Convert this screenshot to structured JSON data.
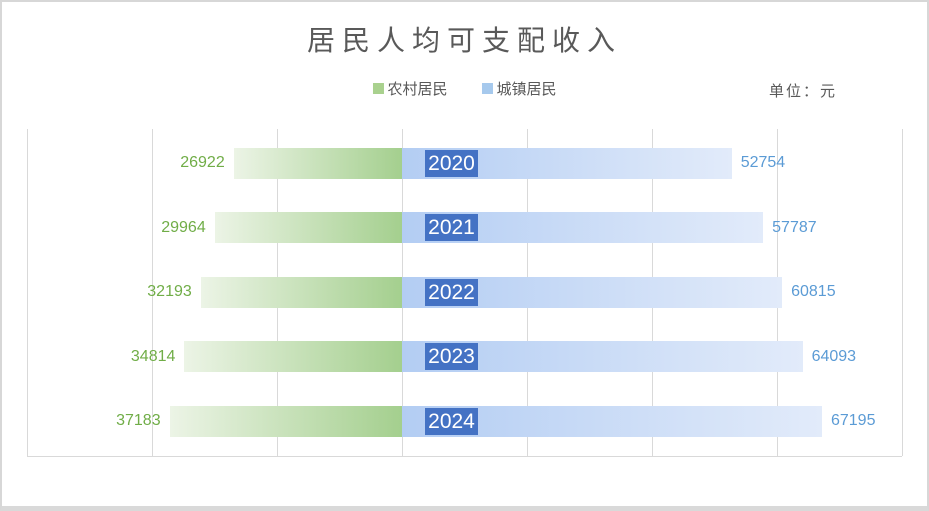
{
  "chart_data": {
    "type": "bar",
    "variant": "diverging-horizontal",
    "title": "居民人均可支配收入",
    "unit_label": "单位：元",
    "categories": [
      "2020",
      "2021",
      "2022",
      "2023",
      "2024"
    ],
    "series": [
      {
        "name": "农村居民",
        "side": "left",
        "values": [
          26922,
          29964,
          32193,
          34814,
          37183
        ],
        "label_color": "#70ad47",
        "legend_color": "#a9d18e",
        "bar_gradient": [
          "#ecf4e6",
          "#a4cf8e"
        ]
      },
      {
        "name": "城镇居民",
        "side": "right",
        "values": [
          52754,
          57787,
          60815,
          64093,
          67195
        ],
        "label_color": "#5b9bd5",
        "legend_color": "#a6c9ed",
        "bar_gradient": [
          "#b3cdf3",
          "#e2ebfa"
        ]
      }
    ],
    "axis": {
      "tick_interval": 20000,
      "left_max": 60000,
      "right_max": 80000,
      "grid_on": true,
      "tick_labels_visible": false
    },
    "legend_position": "top-center",
    "category_box_color": "#4472c4",
    "category_text_color": "#ffffff",
    "grid_color": "#d9d9d9",
    "title_color": "#595959"
  }
}
